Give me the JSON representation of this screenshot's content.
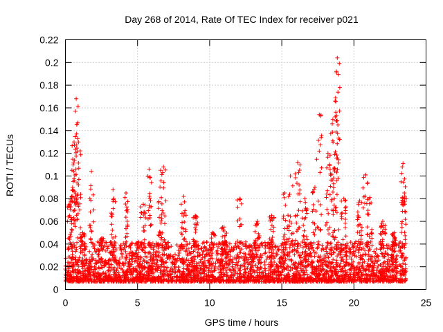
{
  "chart_data": {
    "type": "scatter",
    "title": "Day 268 of 2014, Rate Of TEC Index for receiver p021",
    "xlabel": "GPS time / hours",
    "ylabel": "ROTI / TECUs",
    "xlim": [
      0,
      25
    ],
    "ylim": [
      0,
      0.22
    ],
    "grid": true,
    "marker": "+",
    "color": "#ff0000",
    "x_ticks": [
      "0",
      "5",
      "10",
      "15",
      "20",
      "25"
    ],
    "y_ticks": [
      "0",
      "0.02",
      "0.04",
      "0.06",
      "0.08",
      "0.1",
      "0.12",
      "0.14",
      "0.16",
      "0.18",
      "0.2",
      "0.22"
    ],
    "x_tick_values": [
      0,
      5,
      10,
      15,
      20,
      25
    ],
    "y_tick_values": [
      0,
      0.02,
      0.04,
      0.06,
      0.08,
      0.1,
      0.12,
      0.14,
      0.16,
      0.18,
      0.2,
      0.22
    ],
    "series": [
      {
        "name": "ROTI",
        "description_of_envelope": "dense band of points between 0.01 and ~0.04 from 0 to 23.6 h with spikes",
        "peaks": [
          {
            "x": 0.3,
            "y": 0.075
          },
          {
            "x": 0.5,
            "y": 0.09
          },
          {
            "x": 0.6,
            "y": 0.13
          },
          {
            "x": 0.7,
            "y": 0.157
          },
          {
            "x": 0.75,
            "y": 0.168
          },
          {
            "x": 0.9,
            "y": 0.13
          },
          {
            "x": 1.2,
            "y": 0.05
          },
          {
            "x": 1.8,
            "y": 0.104
          },
          {
            "x": 2.5,
            "y": 0.045
          },
          {
            "x": 3.3,
            "y": 0.088
          },
          {
            "x": 4.2,
            "y": 0.085
          },
          {
            "x": 5.4,
            "y": 0.075
          },
          {
            "x": 5.8,
            "y": 0.106
          },
          {
            "x": 6.6,
            "y": 0.105
          },
          {
            "x": 6.8,
            "y": 0.108
          },
          {
            "x": 8.2,
            "y": 0.082
          },
          {
            "x": 9.0,
            "y": 0.065
          },
          {
            "x": 10.2,
            "y": 0.05
          },
          {
            "x": 11.0,
            "y": 0.055
          },
          {
            "x": 12.1,
            "y": 0.08
          },
          {
            "x": 13.3,
            "y": 0.06
          },
          {
            "x": 14.3,
            "y": 0.065
          },
          {
            "x": 15.2,
            "y": 0.085
          },
          {
            "x": 15.6,
            "y": 0.1
          },
          {
            "x": 16.1,
            "y": 0.112
          },
          {
            "x": 16.6,
            "y": 0.08
          },
          {
            "x": 17.3,
            "y": 0.09
          },
          {
            "x": 17.6,
            "y": 0.154
          },
          {
            "x": 18.2,
            "y": 0.12
          },
          {
            "x": 18.5,
            "y": 0.146
          },
          {
            "x": 18.7,
            "y": 0.166
          },
          {
            "x": 18.8,
            "y": 0.191
          },
          {
            "x": 18.85,
            "y": 0.204
          },
          {
            "x": 19.3,
            "y": 0.08
          },
          {
            "x": 20.4,
            "y": 0.078
          },
          {
            "x": 20.8,
            "y": 0.101
          },
          {
            "x": 21.1,
            "y": 0.081
          },
          {
            "x": 22.0,
            "y": 0.06
          },
          {
            "x": 22.8,
            "y": 0.05
          },
          {
            "x": 23.4,
            "y": 0.111
          },
          {
            "x": 23.5,
            "y": 0.085
          }
        ],
        "baseline_range": [
          0.01,
          0.035
        ],
        "x_range": [
          0.0,
          23.6
        ]
      }
    ]
  }
}
